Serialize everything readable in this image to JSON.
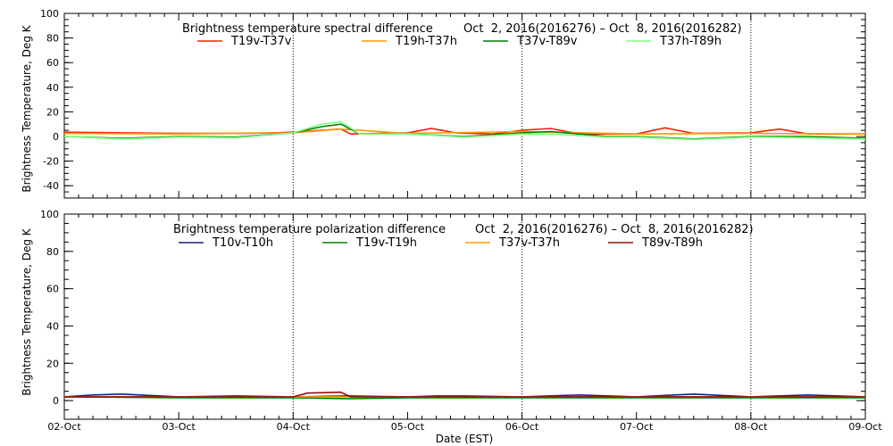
{
  "x_axis_label": "Date (EST)",
  "chart_data": [
    {
      "type": "line",
      "title": "Brightness temperature spectral difference",
      "date_range": "Oct  2, 2016(2016276) – Oct  8, 2016(2016282)",
      "ylabel": "Brightness Temperature, Deg K",
      "ylim": [
        -50,
        100
      ],
      "yticks": [
        -40,
        -20,
        0,
        20,
        40,
        60,
        80,
        100
      ],
      "xlim": [
        "2016-10-02",
        "2016-10-09"
      ],
      "xticks": [
        "02-Oct",
        "03-Oct",
        "04-Oct",
        "05-Oct",
        "06-Oct",
        "07-Oct",
        "08-Oct",
        "09-Oct"
      ],
      "grid": "vertical dotted lines at day boundaries",
      "legend_placement": "top",
      "series": [
        {
          "name": "T19v-T37v",
          "color": "#ff2000",
          "x": [
            "2016-10-02",
            "2016-10-02T12:00",
            "2016-10-03",
            "2016-10-03T12:00",
            "2016-10-03T20:00",
            "2016-10-04",
            "2016-10-04T06:00",
            "2016-10-04T10:00",
            "2016-10-04T12:00",
            "2016-10-05",
            "2016-10-05T05:00",
            "2016-10-05T10:00",
            "2016-10-05T18:00",
            "2016-10-06",
            "2016-10-06T06:00",
            "2016-10-06T12:00",
            "2016-10-07",
            "2016-10-07T06:00",
            "2016-10-07T12:00",
            "2016-10-08",
            "2016-10-08T06:00",
            "2016-10-08T12:00",
            "2016-10-09"
          ],
          "values": [
            3.5,
            3,
            2.5,
            2.5,
            3,
            3.5,
            5,
            6,
            2,
            3,
            6.5,
            3,
            2,
            5,
            6.5,
            2,
            2,
            7,
            2.5,
            3,
            6,
            2,
            2
          ]
        },
        {
          "name": "T19h-T37h",
          "color": "#ff9900",
          "x": [
            "2016-10-02",
            "2016-10-03",
            "2016-10-04",
            "2016-10-04T10:00",
            "2016-10-05",
            "2016-10-06",
            "2016-10-07",
            "2016-10-08",
            "2016-10-09"
          ],
          "values": [
            2.5,
            2,
            3,
            6,
            2.5,
            4,
            2,
            2.5,
            2
          ]
        },
        {
          "name": "T37v-T89v",
          "color": "#008000",
          "x": [
            "2016-10-02",
            "2016-10-02T12:00",
            "2016-10-03",
            "2016-10-03T12:00",
            "2016-10-04",
            "2016-10-04T06:00",
            "2016-10-04T10:00",
            "2016-10-04T14:00",
            "2016-10-05",
            "2016-10-05T12:00",
            "2016-10-06",
            "2016-10-06T06:00",
            "2016-10-06T18:00",
            "2016-10-07",
            "2016-10-07T12:00",
            "2016-10-08",
            "2016-10-08T12:00",
            "2016-10-09"
          ],
          "values": [
            0,
            -1.5,
            0,
            -0.5,
            3,
            8,
            10,
            2,
            2,
            0,
            3,
            4,
            0,
            0,
            -2,
            0,
            0,
            -1.5
          ]
        },
        {
          "name": "T37h-T89h",
          "color": "#80ff80",
          "x": [
            "2016-10-02",
            "2016-10-02T12:00",
            "2016-10-03",
            "2016-10-03T12:00",
            "2016-10-04",
            "2016-10-04T06:00",
            "2016-10-04T10:00",
            "2016-10-04T14:00",
            "2016-10-05",
            "2016-10-05T12:00",
            "2016-10-06",
            "2016-10-06T06:00",
            "2016-10-06T18:00",
            "2016-10-07",
            "2016-10-07T12:00",
            "2016-10-08",
            "2016-10-08T12:00",
            "2016-10-09"
          ],
          "values": [
            0,
            -2,
            -0.5,
            -1,
            3,
            10,
            12,
            2,
            2,
            -0.5,
            2,
            2,
            -0.5,
            -0.5,
            -2.5,
            -0.5,
            -1,
            -2
          ]
        }
      ]
    },
    {
      "type": "line",
      "title": "Brightness temperature polarization difference",
      "date_range": "Oct  2, 2016(2016276) – Oct  8, 2016(2016282)",
      "ylabel": "Brightness Temperature, Deg K",
      "ylim": [
        -10,
        100
      ],
      "yticks": [
        0,
        20,
        40,
        60,
        80,
        100
      ],
      "xlim": [
        "2016-10-02",
        "2016-10-09"
      ],
      "xticks": [
        "02-Oct",
        "03-Oct",
        "04-Oct",
        "05-Oct",
        "06-Oct",
        "07-Oct",
        "08-Oct",
        "09-Oct"
      ],
      "grid": "vertical dotted lines at day boundaries",
      "legend_placement": "top",
      "series": [
        {
          "name": "T10v-T10h",
          "color": "#1a1a8c",
          "x": [
            "2016-10-02",
            "2016-10-02T06:00",
            "2016-10-02T12:00",
            "2016-10-03",
            "2016-10-03T12:00",
            "2016-10-04",
            "2016-10-04T12:00",
            "2016-10-05",
            "2016-10-05T06:00",
            "2016-10-05T12:00",
            "2016-10-06",
            "2016-10-06T12:00",
            "2016-10-07",
            "2016-10-07T12:00",
            "2016-10-08",
            "2016-10-08T12:00",
            "2016-10-09"
          ],
          "values": [
            2,
            3,
            3.5,
            2,
            2.5,
            2,
            2.5,
            2,
            2.5,
            2.5,
            2,
            3,
            2,
            3.5,
            2,
            3,
            2
          ]
        },
        {
          "name": "T19v-T19h",
          "color": "#008000",
          "x": [
            "2016-10-02",
            "2016-10-03",
            "2016-10-04",
            "2016-10-04T12:00",
            "2016-10-05",
            "2016-10-06",
            "2016-10-07",
            "2016-10-08",
            "2016-10-09"
          ],
          "values": [
            2,
            1.5,
            1.5,
            1,
            1.5,
            1.5,
            1.5,
            1.5,
            1.5
          ]
        },
        {
          "name": "T37v-T37h",
          "color": "#ff9900",
          "x": [
            "2016-10-02",
            "2016-10-03",
            "2016-10-04",
            "2016-10-05",
            "2016-10-06",
            "2016-10-07",
            "2016-10-08",
            "2016-10-09"
          ],
          "values": [
            2,
            2,
            2,
            2,
            2,
            2,
            2,
            2
          ]
        },
        {
          "name": "T89v-T89h",
          "color": "#8b1010",
          "x": [
            "2016-10-02",
            "2016-10-03",
            "2016-10-04",
            "2016-10-04T03:00",
            "2016-10-04T10:00",
            "2016-10-04T12:00",
            "2016-10-05",
            "2016-10-06",
            "2016-10-07",
            "2016-10-08",
            "2016-10-09"
          ],
          "values": [
            2,
            2,
            2,
            4,
            4.5,
            2,
            2,
            2,
            2,
            2,
            2
          ]
        }
      ]
    }
  ]
}
